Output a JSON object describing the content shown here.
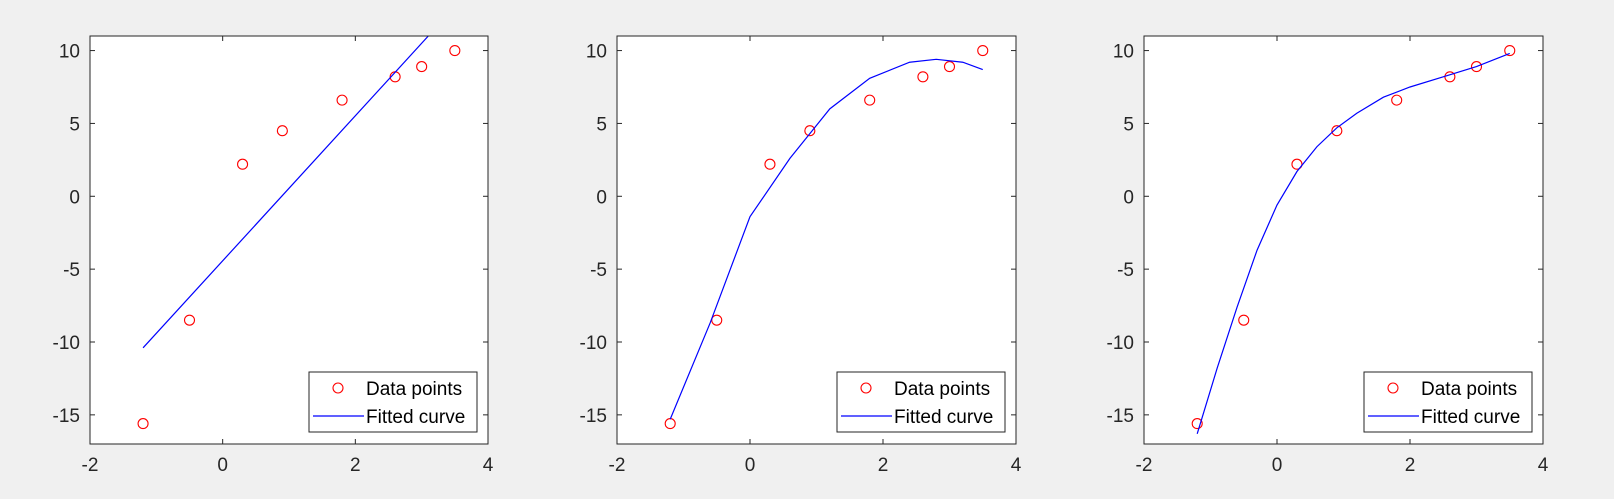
{
  "chart_data": [
    {
      "type": "scatter",
      "xlim": [
        -2,
        4
      ],
      "ylim": [
        -17,
        11
      ],
      "xticks": [
        -2,
        0,
        2,
        4
      ],
      "yticks": [
        -15,
        -10,
        -5,
        0,
        5,
        10
      ],
      "grid": false,
      "legend_position": "bottom-right",
      "series": [
        {
          "name": "Data points",
          "marker": "circle",
          "color": "#ff0000",
          "x": [
            -1.2,
            -0.5,
            0.3,
            0.9,
            1.8,
            2.6,
            3.0,
            3.5
          ],
          "y": [
            -15.6,
            -8.5,
            2.2,
            4.5,
            6.6,
            8.2,
            8.9,
            10.0
          ]
        },
        {
          "name": "Fitted curve",
          "line": "solid",
          "color": "#0000ff",
          "fit": "linear",
          "x": [
            -1.2,
            3.1
          ],
          "y": [
            -10.4,
            11.0
          ]
        }
      ]
    },
    {
      "type": "scatter",
      "xlim": [
        -2,
        4
      ],
      "ylim": [
        -17,
        11
      ],
      "xticks": [
        -2,
        0,
        2,
        4
      ],
      "yticks": [
        -15,
        -10,
        -5,
        0,
        5,
        10
      ],
      "grid": false,
      "legend_position": "bottom-right",
      "series": [
        {
          "name": "Data points",
          "marker": "circle",
          "color": "#ff0000",
          "x": [
            -1.2,
            -0.5,
            0.3,
            0.9,
            1.8,
            2.6,
            3.0,
            3.5
          ],
          "y": [
            -15.6,
            -8.5,
            2.2,
            4.5,
            6.6,
            8.2,
            8.9,
            10.0
          ]
        },
        {
          "name": "Fitted curve",
          "line": "solid",
          "color": "#0000ff",
          "fit": "quadratic",
          "x": [
            -1.2,
            -0.6,
            0.0,
            0.6,
            1.2,
            1.8,
            2.4,
            2.8,
            3.2,
            3.5
          ],
          "y": [
            -15.3,
            -8.7,
            -1.4,
            2.6,
            6.0,
            8.1,
            9.2,
            9.4,
            9.2,
            8.7
          ]
        }
      ]
    },
    {
      "type": "scatter",
      "xlim": [
        -2,
        4
      ],
      "ylim": [
        -17,
        11
      ],
      "xticks": [
        -2,
        0,
        2,
        4
      ],
      "yticks": [
        -15,
        -10,
        -5,
        0,
        5,
        10
      ],
      "grid": false,
      "legend_position": "bottom-right",
      "series": [
        {
          "name": "Data points",
          "marker": "circle",
          "color": "#ff0000",
          "x": [
            -1.2,
            -0.5,
            0.3,
            0.9,
            1.8,
            2.6,
            3.0,
            3.5
          ],
          "y": [
            -15.6,
            -8.5,
            2.2,
            4.5,
            6.6,
            8.2,
            8.9,
            10.0
          ]
        },
        {
          "name": "Fitted curve",
          "line": "solid",
          "color": "#0000ff",
          "fit": "cubic",
          "x": [
            -1.2,
            -0.9,
            -0.6,
            -0.3,
            0.0,
            0.3,
            0.6,
            0.9,
            1.2,
            1.6,
            2.0,
            2.5,
            3.0,
            3.5
          ],
          "y": [
            -16.3,
            -11.8,
            -7.6,
            -3.7,
            -0.6,
            1.7,
            3.4,
            4.7,
            5.7,
            6.8,
            7.5,
            8.2,
            8.9,
            9.8
          ]
        }
      ]
    }
  ]
}
